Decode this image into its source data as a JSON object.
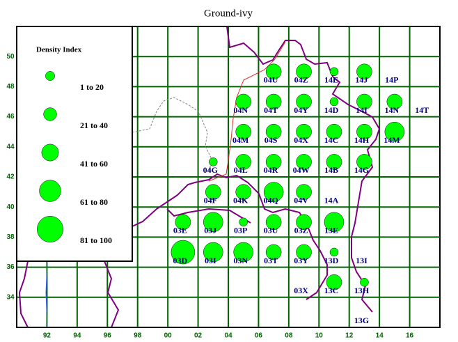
{
  "title": "Ground-ivy",
  "legend": {
    "title": "Density Index",
    "items": [
      {
        "label": "1 to 20",
        "class": 1
      },
      {
        "label": "21 to 40",
        "class": 2
      },
      {
        "label": "41 to 60",
        "class": 3
      },
      {
        "label": "61 to 80",
        "class": 4
      },
      {
        "label": "81 to 100",
        "class": 5
      }
    ]
  },
  "xlim": [
    90,
    118
  ],
  "ylim": [
    32,
    52
  ],
  "xticks": [
    92,
    94,
    96,
    98,
    {
      "value": 100,
      "label": "00"
    },
    {
      "value": 102,
      "label": "02"
    },
    {
      "value": 104,
      "label": "04"
    },
    {
      "value": 106,
      "label": "06"
    },
    {
      "value": 108,
      "label": "08"
    },
    {
      "value": 110,
      "label": "10"
    },
    {
      "value": 112,
      "label": "12"
    },
    {
      "value": 114,
      "label": "14"
    },
    {
      "value": 116,
      "label": "16"
    }
  ],
  "yticks": [
    34,
    36,
    38,
    40,
    42,
    44,
    46,
    48,
    50
  ],
  "cells": [
    {
      "label": "04U",
      "x": 107,
      "y": 49,
      "class": 3
    },
    {
      "label": "04Z",
      "x": 109,
      "y": 49,
      "class": 3
    },
    {
      "label": "14E",
      "x": 111,
      "y": 49,
      "class": 1
    },
    {
      "label": "14J",
      "x": 113,
      "y": 49,
      "class": 3
    },
    {
      "label": "14P",
      "x": 115,
      "y": 49,
      "class": null
    },
    {
      "label": "04N",
      "x": 105,
      "y": 47,
      "class": 3
    },
    {
      "label": "04T",
      "x": 107,
      "y": 47,
      "class": 3
    },
    {
      "label": "04Y",
      "x": 109,
      "y": 47,
      "class": 3
    },
    {
      "label": "14D",
      "x": 111,
      "y": 47,
      "class": 1
    },
    {
      "label": "14I",
      "x": 113,
      "y": 47,
      "class": 3
    },
    {
      "label": "14N",
      "x": 115,
      "y": 47,
      "class": 3
    },
    {
      "label": "14T",
      "x": 117,
      "y": 47,
      "class": null
    },
    {
      "label": "04M",
      "x": 105,
      "y": 45,
      "class": 3
    },
    {
      "label": "04S",
      "x": 107,
      "y": 45,
      "class": 3
    },
    {
      "label": "04X",
      "x": 109,
      "y": 45,
      "class": 3
    },
    {
      "label": "14C",
      "x": 111,
      "y": 45,
      "class": 3
    },
    {
      "label": "14H",
      "x": 113,
      "y": 45,
      "class": 3
    },
    {
      "label": "14M",
      "x": 115,
      "y": 45,
      "class": 4
    },
    {
      "label": "04G",
      "x": 103,
      "y": 43,
      "class": 1
    },
    {
      "label": "04L",
      "x": 105,
      "y": 43,
      "class": 3
    },
    {
      "label": "04R",
      "x": 107,
      "y": 43,
      "class": 3
    },
    {
      "label": "04W",
      "x": 109,
      "y": 43,
      "class": 3
    },
    {
      "label": "14B",
      "x": 111,
      "y": 43,
      "class": 3
    },
    {
      "label": "14G",
      "x": 113,
      "y": 43,
      "class": 3
    },
    {
      "label": "04F",
      "x": 103,
      "y": 41,
      "class": 3
    },
    {
      "label": "04K",
      "x": 105,
      "y": 41,
      "class": 3
    },
    {
      "label": "04Q",
      "x": 107,
      "y": 41,
      "class": 4
    },
    {
      "label": "04V",
      "x": 109,
      "y": 41,
      "class": 3
    },
    {
      "label": "14A",
      "x": 111,
      "y": 41,
      "class": null
    },
    {
      "label": "03E",
      "x": 101,
      "y": 39,
      "class": 3
    },
    {
      "label": "03J",
      "x": 103,
      "y": 39,
      "class": 4
    },
    {
      "label": "03P",
      "x": 105,
      "y": 39,
      "class": 1
    },
    {
      "label": "03U",
      "x": 107,
      "y": 39,
      "class": 3
    },
    {
      "label": "03Z",
      "x": 109,
      "y": 39,
      "class": 3
    },
    {
      "label": "13E",
      "x": 111,
      "y": 39,
      "class": 4
    },
    {
      "label": "03D",
      "x": 101,
      "y": 37,
      "class": 5
    },
    {
      "label": "03I",
      "x": 103,
      "y": 37,
      "class": 4
    },
    {
      "label": "03N",
      "x": 105,
      "y": 37,
      "class": 4
    },
    {
      "label": "03T",
      "x": 107,
      "y": 37,
      "class": 3
    },
    {
      "label": "03Y",
      "x": 109,
      "y": 37,
      "class": 3
    },
    {
      "label": "13D",
      "x": 111,
      "y": 37,
      "class": 1
    },
    {
      "label": "13I",
      "x": 113,
      "y": 37,
      "class": null
    },
    {
      "label": "03X",
      "x": 109,
      "y": 35,
      "class": null
    },
    {
      "label": "13C",
      "x": 111,
      "y": 35,
      "class": 3
    },
    {
      "label": "13H",
      "x": 113,
      "y": 35,
      "class": 1
    },
    {
      "label": "13G",
      "x": 113,
      "y": 33,
      "class": null
    }
  ]
}
